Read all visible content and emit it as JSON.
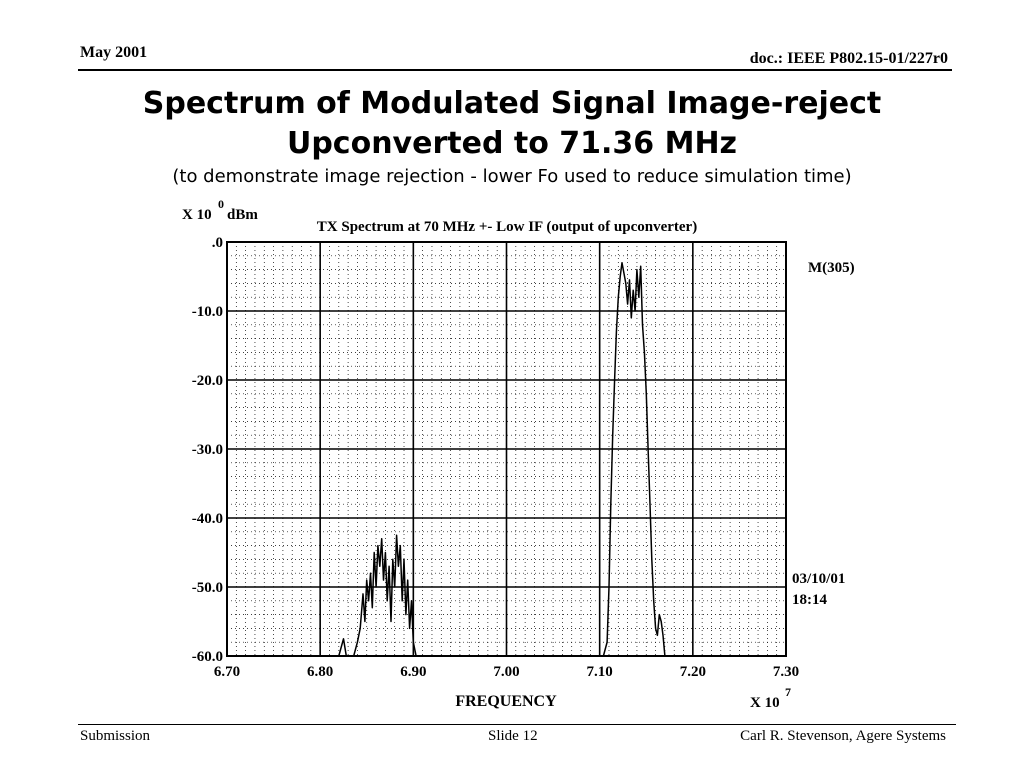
{
  "header": {
    "date": "May 2001",
    "doc_id": "doc.: IEEE P802.15-01/227r0"
  },
  "slide": {
    "title_line1": "Spectrum of Modulated Signal Image-reject",
    "title_line2": "Upconverted to 71.36 MHz",
    "subtitle": "(to demonstrate image rejection - lower Fo used to reduce simulation time)"
  },
  "footer": {
    "left": "Submission",
    "center": "Slide 12",
    "right": "Carl R. Stevenson, Agere Systems"
  },
  "chart_data": {
    "type": "line",
    "title": "TX Spectrum at 70 MHz +- Low IF (output of upconverter)",
    "ylabel_prefix": "X 10",
    "ylabel_exponent": "0",
    "ylabel_unit": "dBm",
    "xlabel": "FREQUENCY",
    "x_multiplier_prefix": "X 10",
    "x_multiplier_exponent": "7",
    "xlim": [
      6.7,
      7.3
    ],
    "ylim": [
      -60.0,
      0.0
    ],
    "x_ticks": [
      "6.70",
      "6.80",
      "6.90",
      "7.00",
      "7.10",
      "7.20",
      "7.30"
    ],
    "y_ticks": [
      ".0",
      "-10.0",
      "-20.0",
      "-30.0",
      "-40.0",
      "-50.0",
      "-60.0"
    ],
    "grid": true,
    "marker_label": "M(305)",
    "timestamp_date": "03/10/01",
    "timestamp_time": "18:14",
    "line_color": "#000000",
    "series": [
      {
        "x": [
          6.82,
          6.825,
          6.828,
          6.832,
          6.836,
          6.84,
          6.843,
          6.846,
          6.848,
          6.85,
          6.852,
          6.854,
          6.856,
          6.858,
          6.86,
          6.862,
          6.864,
          6.866,
          6.868,
          6.87,
          6.872,
          6.874,
          6.876,
          6.878,
          6.88,
          6.882,
          6.884,
          6.886,
          6.888,
          6.89,
          6.892,
          6.894,
          6.896,
          6.898,
          6.9,
          6.903,
          6.906,
          6.91,
          6.915,
          6.92,
          6.93,
          6.95,
          7.0,
          7.05,
          7.1,
          7.104,
          7.108,
          7.11,
          7.112,
          7.114,
          7.116,
          7.118,
          7.12,
          7.122,
          7.124,
          7.126,
          7.128,
          7.13,
          7.132,
          7.134,
          7.136,
          7.138,
          7.14,
          7.142,
          7.144,
          7.146,
          7.148,
          7.15,
          7.152,
          7.154,
          7.156,
          7.158,
          7.16,
          7.162,
          7.164,
          7.166,
          7.168,
          7.17,
          7.175,
          7.18
        ],
        "y": [
          -60.0,
          -57.5,
          -60.0,
          -60.0,
          -60.0,
          -58.0,
          -56.0,
          -51.0,
          -55.0,
          -49.0,
          -52.0,
          -48.0,
          -53.0,
          -45.0,
          -50.0,
          -44.0,
          -47.0,
          -43.0,
          -49.0,
          -45.0,
          -52.0,
          -47.0,
          -55.0,
          -46.0,
          -50.0,
          -42.5,
          -47.0,
          -44.0,
          -52.0,
          -46.0,
          -54.0,
          -49.0,
          -56.0,
          -52.0,
          -58.0,
          -60.0,
          -60.0,
          -60.0,
          -60.0,
          -60.0,
          -60.0,
          -60.0,
          -60.0,
          -60.0,
          -60.0,
          -60.0,
          -58.0,
          -50.0,
          -38.0,
          -28.0,
          -20.0,
          -13.0,
          -8.0,
          -5.0,
          -3.0,
          -4.5,
          -6.0,
          -9.0,
          -5.5,
          -11.0,
          -7.0,
          -10.0,
          -4.0,
          -8.0,
          -3.5,
          -12.0,
          -16.0,
          -22.0,
          -30.0,
          -38.0,
          -46.0,
          -52.0,
          -56.0,
          -57.0,
          -54.0,
          -55.0,
          -57.0,
          -60.0,
          -60.0,
          -60.0
        ]
      }
    ]
  }
}
